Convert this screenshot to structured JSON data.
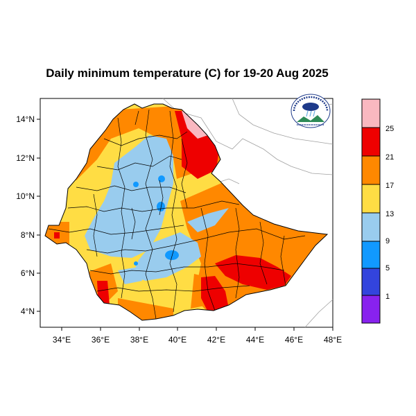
{
  "title": "Daily minimum temperature (C) for 19-20 Aug 2025",
  "map": {
    "lon_ticks": [
      "34°E",
      "36°E",
      "38°E",
      "40°E",
      "42°E",
      "44°E",
      "46°E",
      "48°E"
    ],
    "lat_ticks": [
      "4°N",
      "6°N",
      "8°N",
      "10°N",
      "12°N",
      "14°N"
    ]
  },
  "legend": {
    "bins": [
      {
        "label": "",
        "color": "#f9b8c0"
      },
      {
        "label": "25",
        "color": "#ee0000"
      },
      {
        "label": "21",
        "color": "#ff8800"
      },
      {
        "label": "17",
        "color": "#ffdd44"
      },
      {
        "label": "13",
        "color": "#99ccee"
      },
      {
        "label": "9",
        "color": "#1199ff"
      },
      {
        "label": "5",
        "color": "#3344dd"
      },
      {
        "label": "1",
        "color": "#8822ee"
      }
    ]
  },
  "logo": {
    "icon": "ethiopian-meteorology-institute-logo",
    "colors": [
      "#1e3a8a",
      "#2e8b57",
      "#6ab0e0"
    ]
  }
}
